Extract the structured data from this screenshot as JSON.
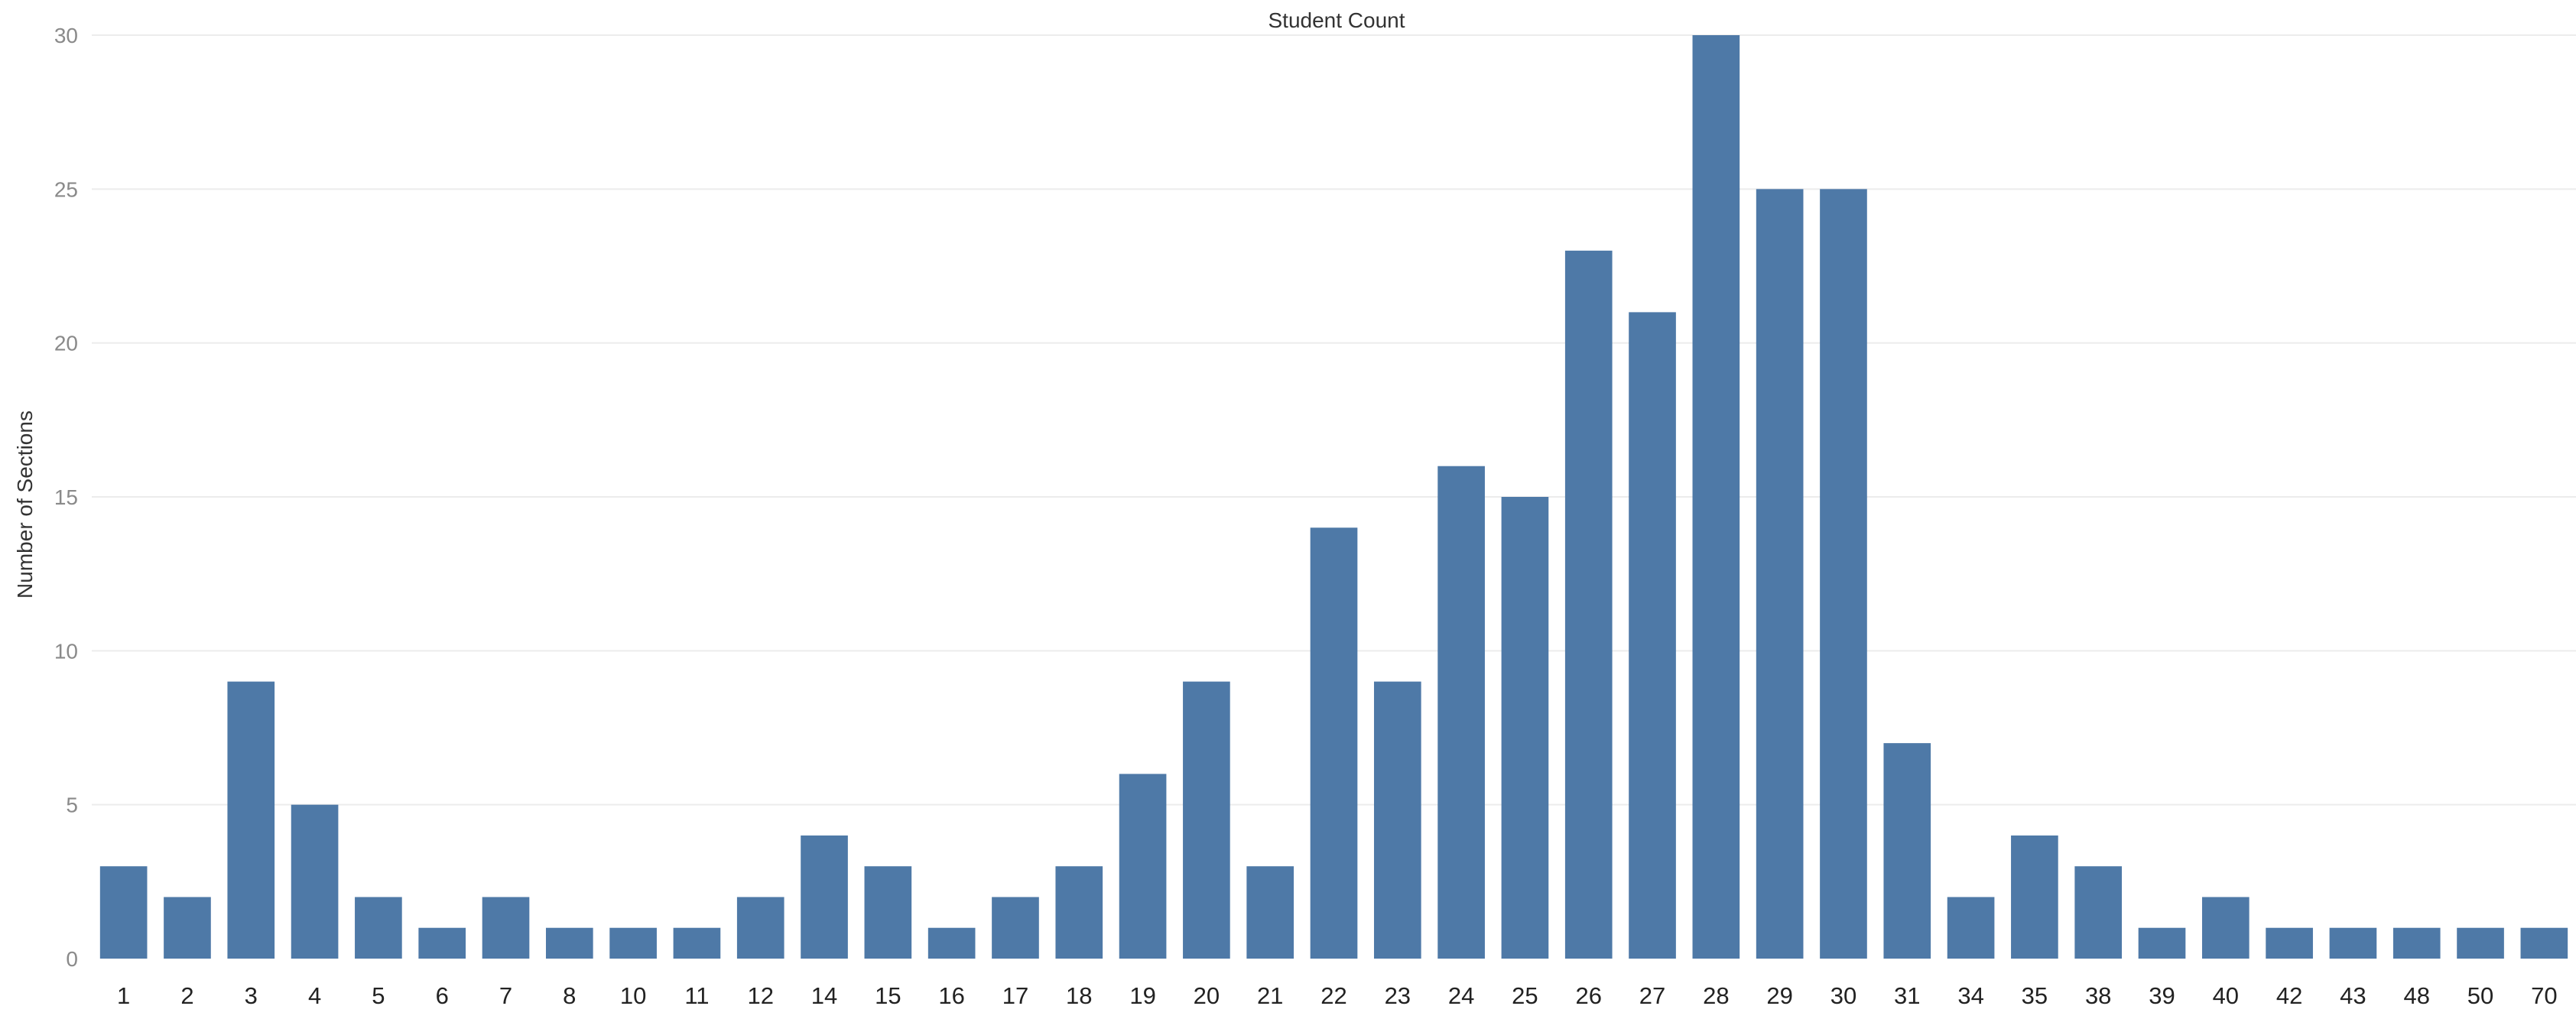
{
  "chart_data": {
    "type": "bar",
    "title": "Student Count",
    "xlabel": "",
    "ylabel": "Number of Sections",
    "ylim": [
      0,
      30
    ],
    "yticks": [
      "0",
      "5",
      "10",
      "15",
      "20",
      "25",
      "30"
    ],
    "grid": true,
    "legend": "none",
    "bar_color": "#4e79a7",
    "categories": [
      "1",
      "2",
      "3",
      "4",
      "5",
      "6",
      "7",
      "8",
      "10",
      "11",
      "12",
      "14",
      "15",
      "16",
      "17",
      "18",
      "19",
      "20",
      "21",
      "22",
      "23",
      "24",
      "25",
      "26",
      "27",
      "28",
      "29",
      "30",
      "31",
      "34",
      "35",
      "38",
      "39",
      "40",
      "42",
      "43",
      "48",
      "50",
      "70"
    ],
    "values": [
      3,
      2,
      9,
      5,
      2,
      1,
      2,
      1,
      1,
      1,
      2,
      4,
      3,
      1,
      2,
      3,
      6,
      9,
      3,
      14,
      9,
      16,
      15,
      23,
      21,
      30,
      25,
      25,
      7,
      2,
      4,
      3,
      1,
      2,
      1,
      1,
      1,
      1,
      1
    ]
  }
}
